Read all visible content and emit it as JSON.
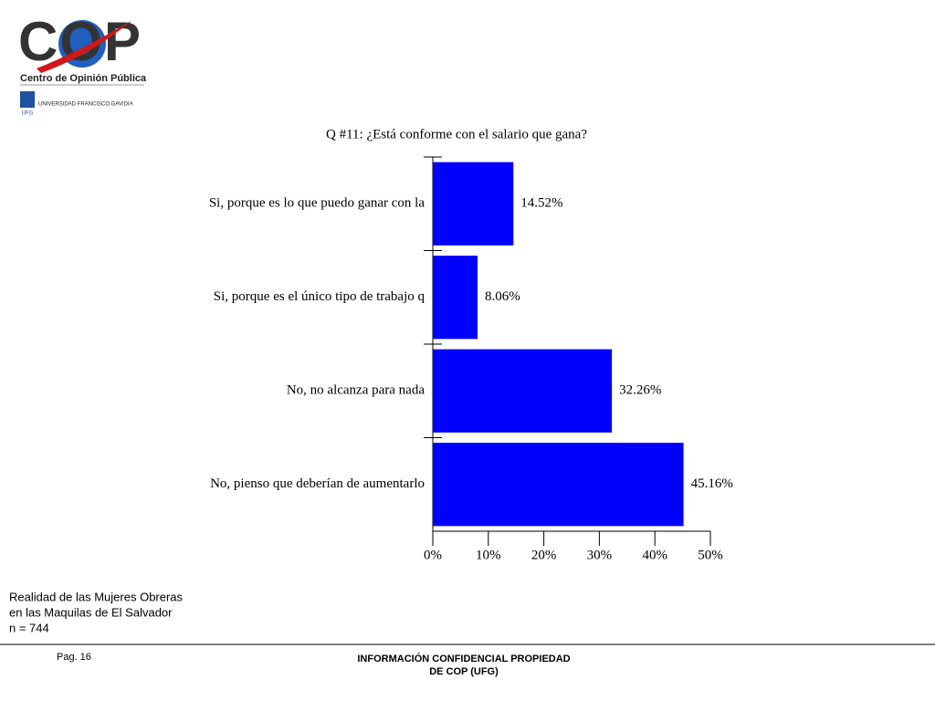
{
  "logo": {
    "name": "COP",
    "subtitle": "Centro de Opinión Pública",
    "university": "UNIVERSIDAD FRANCISCO GAVIDIA",
    "mark": "UFG"
  },
  "chart_data": {
    "type": "barh",
    "title": "Q #11: ¿Está conforme con el salario que gana?",
    "categories": [
      "Si, porque es lo que puedo ganar con la",
      "Si, porque es el único tipo de trabajo q",
      "No, no alcanza para nada",
      "No, pienso que deberían de aumentarlo"
    ],
    "values": [
      14.52,
      8.06,
      32.26,
      45.16
    ],
    "value_labels": [
      "14.52%",
      "8.06%",
      "32.26%",
      "45.16%"
    ],
    "color": "#0000ff",
    "xlim": [
      0,
      50
    ],
    "xticks": [
      {
        "value": 0,
        "label": "0%"
      },
      {
        "value": 10,
        "label": "10%"
      },
      {
        "value": 20,
        "label": "20%"
      },
      {
        "value": 30,
        "label": "30%"
      },
      {
        "value": 40,
        "label": "40%"
      },
      {
        "value": 50,
        "label": "50%"
      }
    ]
  },
  "note": [
    "Realidad de las Mujeres Obreras",
    "en las Maquilas de El Salvador",
    "n = 744"
  ],
  "footer": {
    "page": "Pag. 16",
    "confidential": [
      "INFORMACIÓN CONFIDENCIAL PROPIEDAD",
      "DE COP (UFG)"
    ]
  }
}
